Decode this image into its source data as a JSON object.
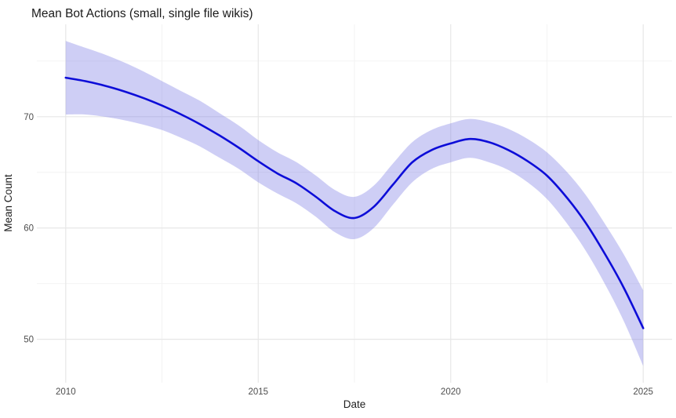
{
  "title": "Mean Bot Actions (small, single file wikis)",
  "colors": {
    "background": "#ffffff",
    "line": "#0d0dd8",
    "band": "rgba(125,125,230,0.38)",
    "grid_major": "#e7e7e7",
    "grid_minor": "#f2f2f2",
    "title_text": "#1a1a1a",
    "axis_label_text": "#1f1f1f",
    "tick_text": "#4d4d4d"
  },
  "chart_data": {
    "type": "line",
    "title": "Mean Bot Actions (small, single file wikis)",
    "xlabel": "Date",
    "ylabel": "Mean Count",
    "legend": false,
    "grid": true,
    "xlim": [
      2009.25,
      2025.75
    ],
    "ylim": [
      46.1,
      78.3
    ],
    "x_ticks": [
      2010,
      2015,
      2020,
      2025
    ],
    "x_minor_ticks": [
      2012.5,
      2017.5,
      2022.5
    ],
    "y_ticks": [
      50,
      60,
      70
    ],
    "y_minor_ticks": [
      55,
      65,
      75
    ],
    "x": [
      2010,
      2010.5,
      2011,
      2011.5,
      2012,
      2012.5,
      2013,
      2013.5,
      2014,
      2014.5,
      2015,
      2015.5,
      2016,
      2016.5,
      2017,
      2017.5,
      2018,
      2018.5,
      2019,
      2019.5,
      2020,
      2020.5,
      2021,
      2021.5,
      2022,
      2022.5,
      2023,
      2023.5,
      2024,
      2024.5,
      2025
    ],
    "series": [
      {
        "name": "smoothed mean bot actions",
        "values": [
          73.5,
          73.2,
          72.8,
          72.3,
          71.7,
          71.0,
          70.2,
          69.3,
          68.3,
          67.2,
          66.0,
          64.9,
          64.0,
          62.8,
          61.5,
          60.9,
          61.9,
          63.9,
          65.9,
          67.0,
          67.6,
          68.0,
          67.7,
          67.0,
          66.0,
          64.7,
          62.8,
          60.5,
          57.7,
          54.6,
          51.0
        ]
      }
    ],
    "band": {
      "name": "confidence interval",
      "upper": [
        76.8,
        76.2,
        75.6,
        74.9,
        74.1,
        73.2,
        72.3,
        71.4,
        70.3,
        69.2,
        67.9,
        66.8,
        65.9,
        64.7,
        63.4,
        62.8,
        63.8,
        65.8,
        67.7,
        68.8,
        69.4,
        69.8,
        69.5,
        68.9,
        68.0,
        66.8,
        65.1,
        63.0,
        60.4,
        57.6,
        54.4
      ],
      "lower": [
        70.2,
        70.2,
        70.0,
        69.7,
        69.3,
        68.8,
        68.1,
        67.3,
        66.3,
        65.3,
        64.1,
        63.1,
        62.2,
        61.0,
        59.6,
        59.0,
        60.0,
        62.1,
        64.1,
        65.3,
        65.9,
        66.3,
        65.9,
        65.2,
        64.1,
        62.6,
        60.5,
        58.0,
        55.0,
        51.6,
        47.6
      ]
    }
  }
}
